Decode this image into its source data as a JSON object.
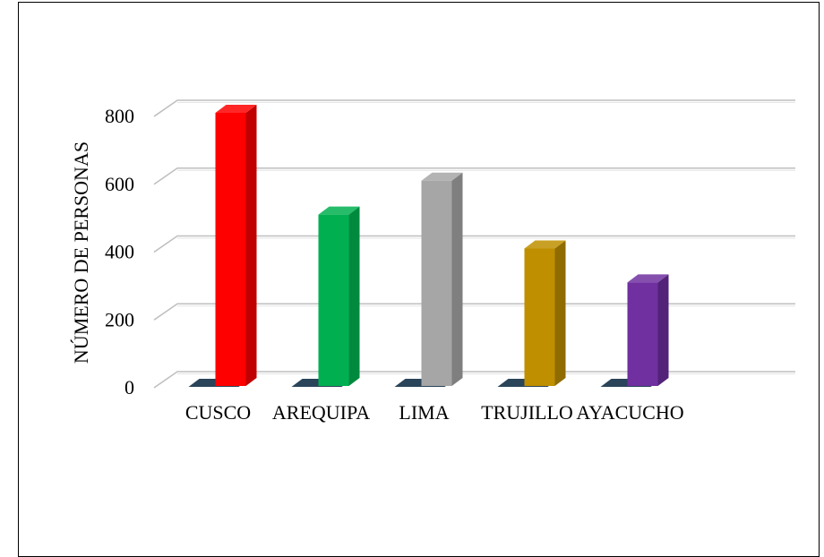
{
  "chart_data": {
    "type": "bar",
    "categories": [
      "CUSCO",
      "AREQUIPA",
      "LIMA",
      "TRUJILLO",
      "AYACUCHO"
    ],
    "values": [
      800,
      500,
      600,
      400,
      300
    ],
    "ylabel": "NÚMERO DE PERSONAS",
    "xlabel": "",
    "title": "",
    "ylim": [
      0,
      800
    ],
    "yticks": [
      0,
      200,
      400,
      600,
      800
    ],
    "grid": true,
    "legend": "none",
    "colors": [
      "#ff0000",
      "#00b050",
      "#a6a6a6",
      "#bf8f00",
      "#7030a0"
    ],
    "shadow_colors": [
      "#c00000",
      "#008a3e",
      "#7f7f7f",
      "#8f6b00",
      "#522378"
    ],
    "base_shadow_color": "#1f3a50"
  }
}
